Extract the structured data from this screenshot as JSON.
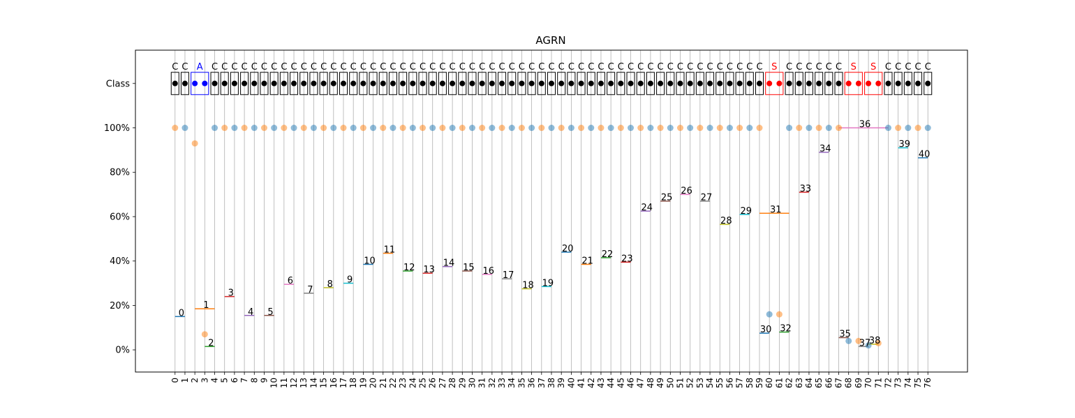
{
  "chart_data": {
    "type": "scatter",
    "title": "AGRN",
    "xlabel": "",
    "ylabel": "",
    "x_ticks": [
      "0",
      "1",
      "2",
      "3",
      "4",
      "5",
      "6",
      "7",
      "8",
      "9",
      "10",
      "11",
      "12",
      "13",
      "14",
      "15",
      "16",
      "17",
      "18",
      "19",
      "20",
      "21",
      "22",
      "23",
      "24",
      "25",
      "26",
      "27",
      "28",
      "29",
      "30",
      "31",
      "32",
      "33",
      "34",
      "35",
      "36",
      "37",
      "38",
      "39",
      "40",
      "41",
      "42",
      "43",
      "44",
      "45",
      "46",
      "47",
      "48",
      "49",
      "50",
      "51",
      "52",
      "53",
      "54",
      "55",
      "56",
      "57",
      "58",
      "59",
      "60",
      "61",
      "62",
      "63",
      "64",
      "65",
      "66",
      "67",
      "68",
      "69",
      "70",
      "71",
      "72",
      "73",
      "74",
      "75",
      "76"
    ],
    "y_ticks": [
      {
        "value": 0,
        "label": "0%"
      },
      {
        "value": 20,
        "label": "20%"
      },
      {
        "value": 40,
        "label": "40%"
      },
      {
        "value": 60,
        "label": "60%"
      },
      {
        "value": 80,
        "label": "80%"
      },
      {
        "value": 100,
        "label": "100%"
      }
    ],
    "class_row_label": "Class",
    "xlim": [
      -4,
      80
    ],
    "ylim": [
      -10,
      135
    ],
    "class_row_y": 120,
    "grid": "vertical",
    "colors": {
      "blue_point": "#1f77b4",
      "orange_point": "#ff7f0e",
      "class_C": "#000000",
      "class_A": "#0000ff",
      "class_S": "#ff0000",
      "grid": "#b0b0b0"
    },
    "segment_colors": [
      "#1f77b4",
      "#ff7f0e",
      "#2ca02c",
      "#d62728",
      "#9467bd",
      "#8c564b",
      "#e377c2",
      "#7f7f7f",
      "#bcbd22",
      "#17becf"
    ],
    "classes": [
      {
        "label": "C",
        "start": 0,
        "end": 0
      },
      {
        "label": "C",
        "start": 1,
        "end": 1
      },
      {
        "label": "A",
        "start": 2,
        "end": 3
      },
      {
        "label": "C",
        "start": 4,
        "end": 4
      },
      {
        "label": "C",
        "start": 5,
        "end": 5
      },
      {
        "label": "C",
        "start": 6,
        "end": 6
      },
      {
        "label": "C",
        "start": 7,
        "end": 7
      },
      {
        "label": "C",
        "start": 8,
        "end": 8
      },
      {
        "label": "C",
        "start": 9,
        "end": 9
      },
      {
        "label": "C",
        "start": 10,
        "end": 10
      },
      {
        "label": "C",
        "start": 11,
        "end": 11
      },
      {
        "label": "C",
        "start": 12,
        "end": 12
      },
      {
        "label": "C",
        "start": 13,
        "end": 13
      },
      {
        "label": "C",
        "start": 14,
        "end": 14
      },
      {
        "label": "C",
        "start": 15,
        "end": 15
      },
      {
        "label": "C",
        "start": 16,
        "end": 16
      },
      {
        "label": "C",
        "start": 17,
        "end": 17
      },
      {
        "label": "C",
        "start": 18,
        "end": 18
      },
      {
        "label": "C",
        "start": 19,
        "end": 19
      },
      {
        "label": "C",
        "start": 20,
        "end": 20
      },
      {
        "label": "C",
        "start": 21,
        "end": 21
      },
      {
        "label": "C",
        "start": 22,
        "end": 22
      },
      {
        "label": "C",
        "start": 23,
        "end": 23
      },
      {
        "label": "C",
        "start": 24,
        "end": 24
      },
      {
        "label": "C",
        "start": 25,
        "end": 25
      },
      {
        "label": "C",
        "start": 26,
        "end": 26
      },
      {
        "label": "C",
        "start": 27,
        "end": 27
      },
      {
        "label": "C",
        "start": 28,
        "end": 28
      },
      {
        "label": "C",
        "start": 29,
        "end": 29
      },
      {
        "label": "C",
        "start": 30,
        "end": 30
      },
      {
        "label": "C",
        "start": 31,
        "end": 31
      },
      {
        "label": "C",
        "start": 32,
        "end": 32
      },
      {
        "label": "C",
        "start": 33,
        "end": 33
      },
      {
        "label": "C",
        "start": 34,
        "end": 34
      },
      {
        "label": "C",
        "start": 35,
        "end": 35
      },
      {
        "label": "C",
        "start": 36,
        "end": 36
      },
      {
        "label": "C",
        "start": 37,
        "end": 37
      },
      {
        "label": "C",
        "start": 38,
        "end": 38
      },
      {
        "label": "C",
        "start": 39,
        "end": 39
      },
      {
        "label": "C",
        "start": 40,
        "end": 40
      },
      {
        "label": "C",
        "start": 41,
        "end": 41
      },
      {
        "label": "C",
        "start": 42,
        "end": 42
      },
      {
        "label": "C",
        "start": 43,
        "end": 43
      },
      {
        "label": "C",
        "start": 44,
        "end": 44
      },
      {
        "label": "C",
        "start": 45,
        "end": 45
      },
      {
        "label": "C",
        "start": 46,
        "end": 46
      },
      {
        "label": "C",
        "start": 47,
        "end": 47
      },
      {
        "label": "C",
        "start": 48,
        "end": 48
      },
      {
        "label": "C",
        "start": 49,
        "end": 49
      },
      {
        "label": "C",
        "start": 50,
        "end": 50
      },
      {
        "label": "C",
        "start": 51,
        "end": 51
      },
      {
        "label": "C",
        "start": 52,
        "end": 52
      },
      {
        "label": "C",
        "start": 53,
        "end": 53
      },
      {
        "label": "C",
        "start": 54,
        "end": 54
      },
      {
        "label": "C",
        "start": 55,
        "end": 55
      },
      {
        "label": "C",
        "start": 56,
        "end": 56
      },
      {
        "label": "C",
        "start": 57,
        "end": 57
      },
      {
        "label": "C",
        "start": 58,
        "end": 58
      },
      {
        "label": "C",
        "start": 59,
        "end": 59
      },
      {
        "label": "S",
        "start": 60,
        "end": 61
      },
      {
        "label": "C",
        "start": 62,
        "end": 62
      },
      {
        "label": "C",
        "start": 63,
        "end": 63
      },
      {
        "label": "C",
        "start": 64,
        "end": 64
      },
      {
        "label": "C",
        "start": 65,
        "end": 65
      },
      {
        "label": "C",
        "start": 66,
        "end": 66
      },
      {
        "label": "C",
        "start": 67,
        "end": 67
      },
      {
        "label": "S",
        "start": 68,
        "end": 69
      },
      {
        "label": "S",
        "start": 70,
        "end": 71
      },
      {
        "label": "C",
        "start": 72,
        "end": 72
      },
      {
        "label": "C",
        "start": 73,
        "end": 73
      },
      {
        "label": "C",
        "start": 74,
        "end": 74
      },
      {
        "label": "C",
        "start": 75,
        "end": 75
      },
      {
        "label": "C",
        "start": 76,
        "end": 76
      }
    ],
    "series": [
      {
        "color_key": "orange_point",
        "points": [
          [
            0,
            100
          ],
          [
            2,
            93
          ],
          [
            3,
            7
          ],
          [
            5,
            100
          ],
          [
            7,
            100
          ],
          [
            9,
            100
          ],
          [
            11,
            100
          ],
          [
            13,
            100
          ],
          [
            15,
            100
          ],
          [
            17,
            100
          ],
          [
            19,
            100
          ],
          [
            21,
            100
          ],
          [
            23,
            100
          ],
          [
            25,
            100
          ],
          [
            27,
            100
          ],
          [
            29,
            100
          ],
          [
            31,
            100
          ],
          [
            33,
            100
          ],
          [
            35,
            100
          ],
          [
            37,
            100
          ],
          [
            39,
            100
          ],
          [
            41,
            100
          ],
          [
            43,
            100
          ],
          [
            45,
            100
          ],
          [
            47,
            100
          ],
          [
            49,
            100
          ],
          [
            51,
            100
          ],
          [
            53,
            100
          ],
          [
            55,
            100
          ],
          [
            57,
            100
          ],
          [
            59,
            100
          ],
          [
            61,
            16
          ],
          [
            63,
            100
          ],
          [
            65,
            100
          ],
          [
            67,
            100
          ],
          [
            69,
            4
          ],
          [
            71,
            3
          ],
          [
            73,
            100
          ],
          [
            75,
            100
          ]
        ]
      },
      {
        "color_key": "blue_point",
        "points": [
          [
            1,
            100
          ],
          [
            4,
            100
          ],
          [
            6,
            100
          ],
          [
            8,
            100
          ],
          [
            10,
            100
          ],
          [
            12,
            100
          ],
          [
            14,
            100
          ],
          [
            16,
            100
          ],
          [
            18,
            100
          ],
          [
            20,
            100
          ],
          [
            22,
            100
          ],
          [
            24,
            100
          ],
          [
            26,
            100
          ],
          [
            28,
            100
          ],
          [
            30,
            100
          ],
          [
            32,
            100
          ],
          [
            34,
            100
          ],
          [
            36,
            100
          ],
          [
            38,
            100
          ],
          [
            40,
            100
          ],
          [
            42,
            100
          ],
          [
            44,
            100
          ],
          [
            46,
            100
          ],
          [
            48,
            100
          ],
          [
            50,
            100
          ],
          [
            52,
            100
          ],
          [
            54,
            100
          ],
          [
            56,
            100
          ],
          [
            58,
            100
          ],
          [
            60,
            16
          ],
          [
            62,
            100
          ],
          [
            64,
            100
          ],
          [
            66,
            100
          ],
          [
            68,
            4
          ],
          [
            70,
            2
          ],
          [
            72,
            100
          ],
          [
            74,
            100
          ],
          [
            76,
            100
          ]
        ]
      }
    ],
    "segments": [
      {
        "label": "0",
        "x0": 0,
        "x1": 1,
        "y": 15
      },
      {
        "label": "1",
        "x0": 2,
        "x1": 4,
        "y": 18.5
      },
      {
        "label": "2",
        "x0": 3,
        "x1": 4,
        "y": 1.5
      },
      {
        "label": "3",
        "x0": 5,
        "x1": 6,
        "y": 24
      },
      {
        "label": "4",
        "x0": 7,
        "x1": 8,
        "y": 15.5
      },
      {
        "label": "5",
        "x0": 9,
        "x1": 10,
        "y": 15.5
      },
      {
        "label": "6",
        "x0": 11,
        "x1": 12,
        "y": 29.5
      },
      {
        "label": "7",
        "x0": 13,
        "x1": 14,
        "y": 25.5
      },
      {
        "label": "8",
        "x0": 15,
        "x1": 16,
        "y": 28
      },
      {
        "label": "9",
        "x0": 17,
        "x1": 18,
        "y": 30
      },
      {
        "label": "10",
        "x0": 19,
        "x1": 20,
        "y": 38.5
      },
      {
        "label": "11",
        "x0": 21,
        "x1": 22,
        "y": 43.5
      },
      {
        "label": "12",
        "x0": 23,
        "x1": 24,
        "y": 35.5
      },
      {
        "label": "13",
        "x0": 25,
        "x1": 26,
        "y": 34.5
      },
      {
        "label": "14",
        "x0": 27,
        "x1": 28,
        "y": 37.5
      },
      {
        "label": "15",
        "x0": 29,
        "x1": 30,
        "y": 35.5
      },
      {
        "label": "16",
        "x0": 31,
        "x1": 32,
        "y": 34
      },
      {
        "label": "17",
        "x0": 33,
        "x1": 34,
        "y": 32
      },
      {
        "label": "18",
        "x0": 35,
        "x1": 36,
        "y": 27.5
      },
      {
        "label": "19",
        "x0": 37,
        "x1": 38,
        "y": 28.5
      },
      {
        "label": "20",
        "x0": 39,
        "x1": 40,
        "y": 44
      },
      {
        "label": "21",
        "x0": 41,
        "x1": 42,
        "y": 38.5
      },
      {
        "label": "22",
        "x0": 43,
        "x1": 44,
        "y": 41.5
      },
      {
        "label": "23",
        "x0": 45,
        "x1": 46,
        "y": 39.5
      },
      {
        "label": "24",
        "x0": 47,
        "x1": 48,
        "y": 62.5
      },
      {
        "label": "25",
        "x0": 49,
        "x1": 50,
        "y": 67
      },
      {
        "label": "26",
        "x0": 51,
        "x1": 52,
        "y": 70
      },
      {
        "label": "27",
        "x0": 53,
        "x1": 54,
        "y": 67
      },
      {
        "label": "28",
        "x0": 55,
        "x1": 56,
        "y": 56.5
      },
      {
        "label": "29",
        "x0": 57,
        "x1": 58,
        "y": 61
      },
      {
        "label": "30",
        "x0": 59,
        "x1": 60,
        "y": 7.5
      },
      {
        "label": "31",
        "x0": 59,
        "x1": 62,
        "y": 61.5
      },
      {
        "label": "32",
        "x0": 61,
        "x1": 62,
        "y": 8
      },
      {
        "label": "33",
        "x0": 63,
        "x1": 64,
        "y": 71
      },
      {
        "label": "34",
        "x0": 65,
        "x1": 66,
        "y": 89
      },
      {
        "label": "35",
        "x0": 67,
        "x1": 68,
        "y": 5.5
      },
      {
        "label": "36",
        "x0": 67,
        "x1": 72,
        "y": 100
      },
      {
        "label": "37",
        "x0": 69,
        "x1": 70,
        "y": 1.5
      },
      {
        "label": "38",
        "x0": 70,
        "x1": 71,
        "y": 2.5
      },
      {
        "label": "39",
        "x0": 73,
        "x1": 74,
        "y": 91
      },
      {
        "label": "40",
        "x0": 75,
        "x1": 76,
        "y": 86.5
      }
    ]
  }
}
